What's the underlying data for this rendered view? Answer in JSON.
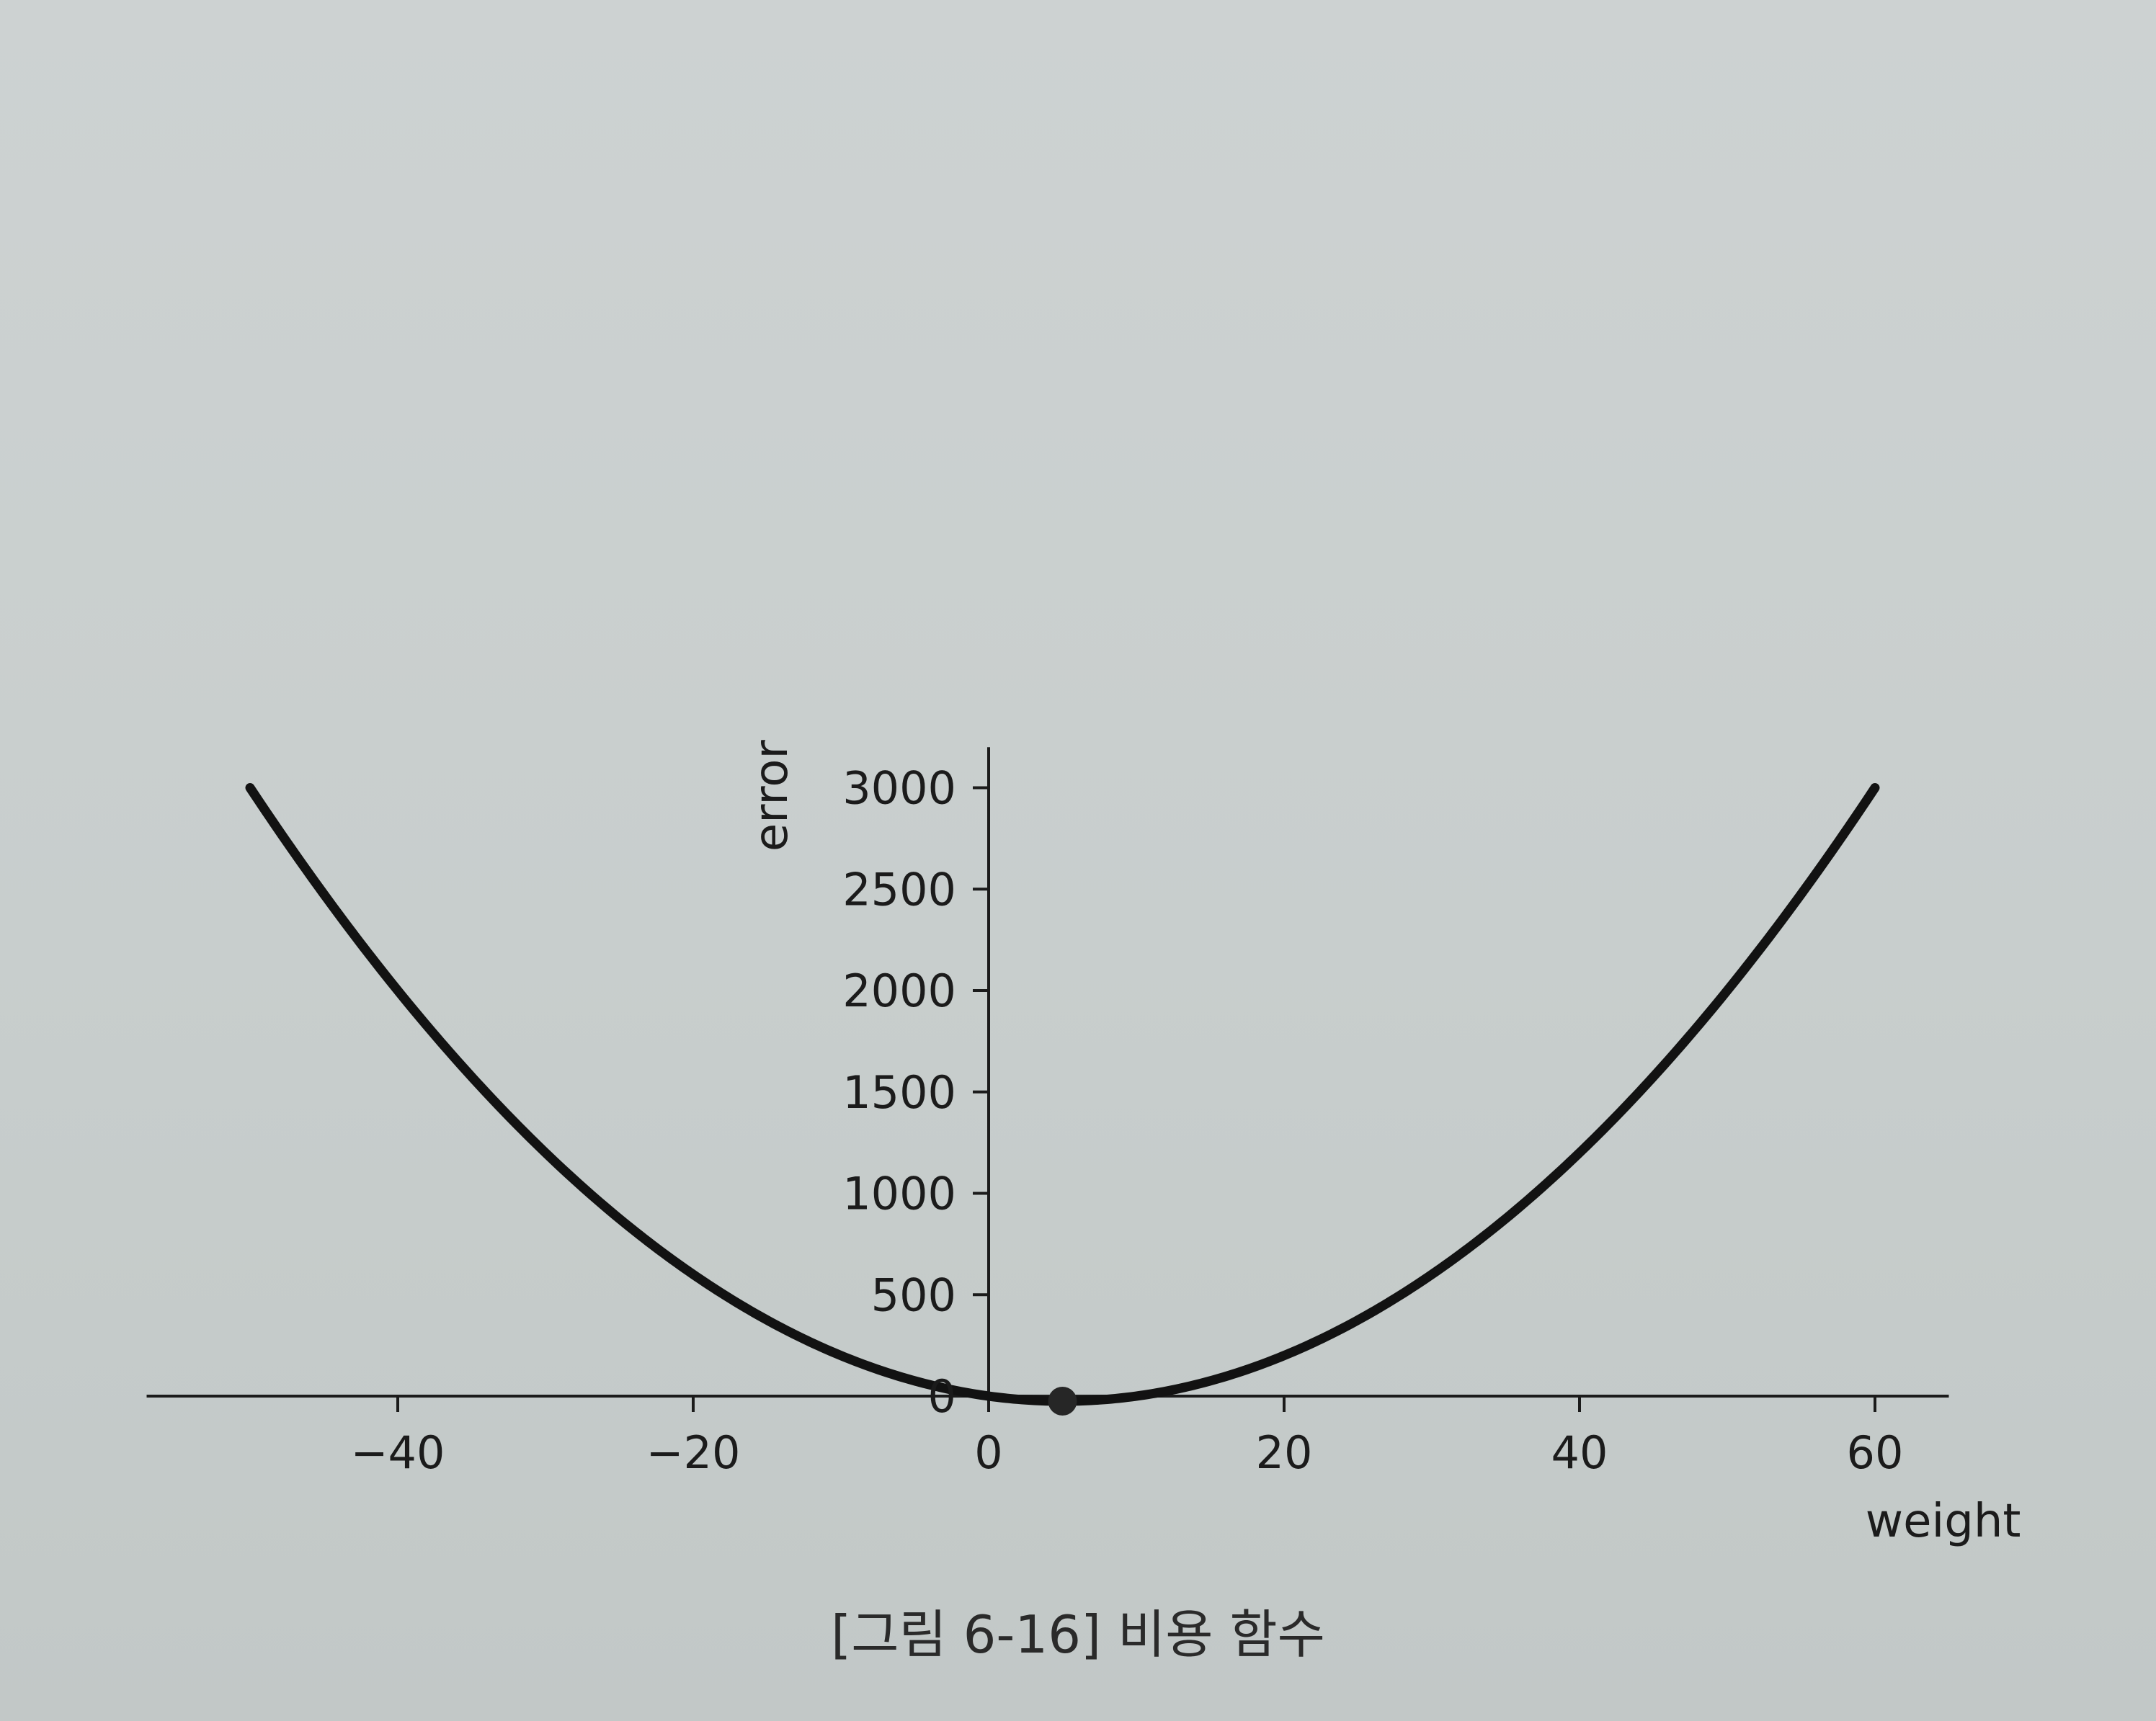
{
  "caption": "[그림 6-16] 비용 함수",
  "chart_data": {
    "type": "line",
    "title": "",
    "xlabel": "weight",
    "ylabel": "error",
    "xlim": [
      -57,
      65
    ],
    "ylim": [
      -30,
      3200
    ],
    "x_ticks": [
      -40,
      -20,
      0,
      20,
      40,
      60
    ],
    "x_tick_labels": [
      "−40",
      "−20",
      "0",
      "20",
      "40",
      "60"
    ],
    "y_ticks": [
      0,
      500,
      1000,
      1500,
      2000,
      2500,
      3000
    ],
    "y_tick_labels": [
      "0",
      "500",
      "1000",
      "1500",
      "2000",
      "2500",
      "3000"
    ],
    "grid": false,
    "series": [
      {
        "function": "(x - 5)^2 - 25",
        "x_range": [
          -50,
          60
        ]
      }
    ],
    "points": [
      {
        "x": 5,
        "y": -25
      }
    ],
    "colors": {
      "line": "#121212",
      "axis": "#1b1b1b",
      "point": "#262626"
    }
  }
}
